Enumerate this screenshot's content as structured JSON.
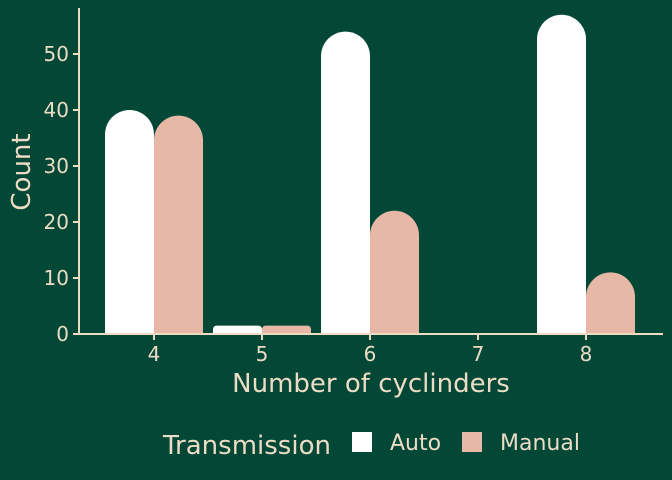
{
  "chart_data": {
    "type": "bar",
    "categories": [
      "4",
      "5",
      "6",
      "7",
      "8"
    ],
    "series": [
      {
        "name": "Auto",
        "values": [
          40,
          1.5,
          54,
          0,
          57
        ]
      },
      {
        "name": "Manual",
        "values": [
          39,
          1.5,
          22,
          0,
          11
        ]
      }
    ],
    "title": "",
    "xlabel": "Number of cyclinders",
    "ylabel": "Count",
    "ylim": [
      0,
      58
    ],
    "yticks": [
      0,
      10,
      20,
      30,
      40,
      50
    ],
    "grid": false,
    "legend": {
      "title": "Transmission",
      "position": "bottom"
    }
  },
  "colors": {
    "background": "#034737",
    "text": "#ecdcc4",
    "Auto": "#ffffff",
    "Manual": "#e8b8a6"
  }
}
